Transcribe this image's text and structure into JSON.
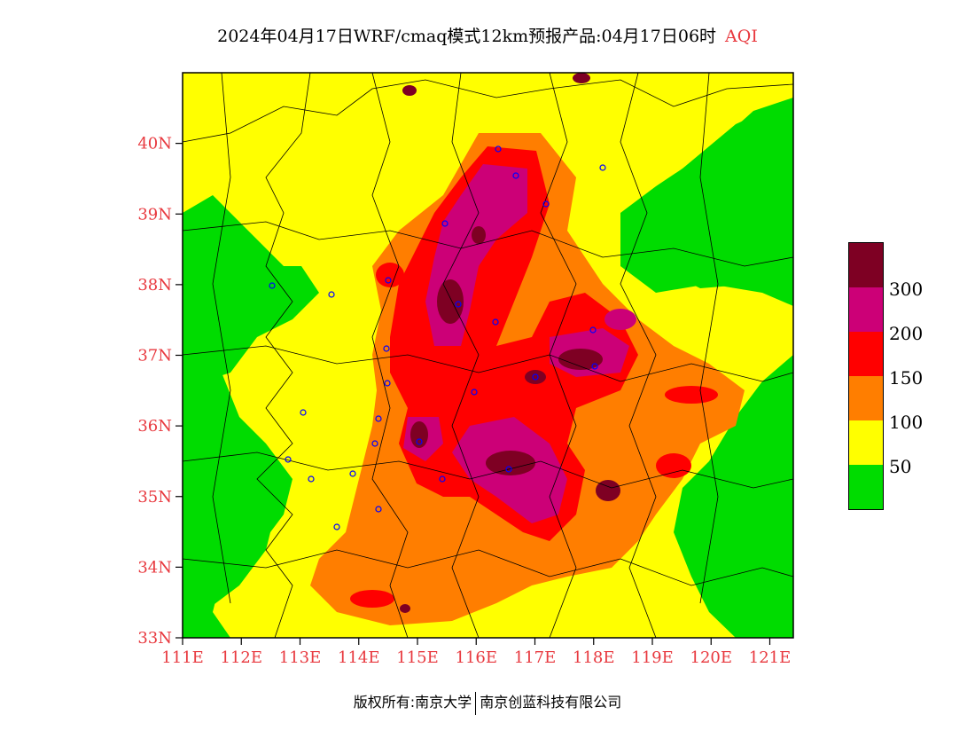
{
  "title": {
    "text": "2024年04月17日WRF/cmaq模式12km预报产品:04月17日06时",
    "product": "AQI"
  },
  "map": {
    "lat_labels": [
      "40N",
      "39N",
      "38N",
      "37N",
      "36N",
      "35N",
      "34N",
      "33N"
    ],
    "lon_labels": [
      "111E",
      "112E",
      "113E",
      "114E",
      "115E",
      "116E",
      "117E",
      "118E",
      "119E",
      "120E",
      "121E"
    ],
    "extent": {
      "lon_min": 111,
      "lon_max": 121.4,
      "lat_min": 33,
      "lat_max": 41
    },
    "colors": {
      "green": "#00dc00",
      "yellow": "#ffff00",
      "orange": "#ff7e00",
      "red": "#ff0000",
      "magenta": "#cc0077",
      "maroon": "#7e0023"
    }
  },
  "legend": {
    "labels": [
      "300",
      "200",
      "150",
      "100",
      "50"
    ],
    "colors": [
      "#7e0023",
      "#cc0077",
      "#ff0000",
      "#ff7e00",
      "#ffff00",
      "#00dc00"
    ]
  },
  "copyright": {
    "left": "版权所有:南京大学",
    "right": "南京创蓝科技有限公司"
  }
}
